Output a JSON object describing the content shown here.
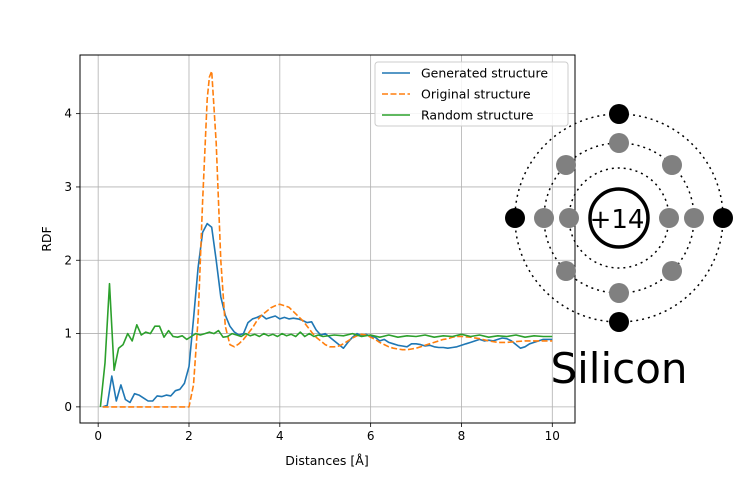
{
  "chart_data": {
    "type": "line",
    "title": "",
    "xlabel": "Distances [Å]",
    "ylabel": "RDF",
    "xlim": [
      -0.4,
      10.5
    ],
    "ylim": [
      -0.22,
      4.8
    ],
    "xticks": [
      0,
      2,
      4,
      6,
      8,
      10
    ],
    "yticks": [
      0,
      1,
      2,
      3,
      4
    ],
    "grid": true,
    "legend_position": "top-right",
    "series": [
      {
        "name": "Generated structure",
        "color": "#1f77b4",
        "style": "solid",
        "x": [
          0.1,
          0.2,
          0.3,
          0.4,
          0.5,
          0.6,
          0.7,
          0.8,
          0.9,
          1.0,
          1.1,
          1.2,
          1.3,
          1.4,
          1.5,
          1.6,
          1.7,
          1.8,
          1.9,
          2.0,
          2.1,
          2.2,
          2.3,
          2.4,
          2.5,
          2.6,
          2.7,
          2.8,
          2.9,
          3.0,
          3.1,
          3.2,
          3.3,
          3.4,
          3.5,
          3.6,
          3.7,
          3.8,
          3.9,
          4.0,
          4.1,
          4.2,
          4.3,
          4.4,
          4.5,
          4.6,
          4.7,
          4.8,
          4.9,
          5.0,
          5.1,
          5.2,
          5.3,
          5.4,
          5.5,
          5.6,
          5.7,
          5.8,
          5.9,
          6.0,
          6.1,
          6.2,
          6.3,
          6.4,
          6.5,
          6.6,
          6.7,
          6.8,
          6.9,
          7.0,
          7.1,
          7.2,
          7.3,
          7.4,
          7.5,
          7.6,
          7.7,
          7.8,
          7.9,
          8.0,
          8.1,
          8.2,
          8.3,
          8.4,
          8.5,
          8.6,
          8.7,
          8.8,
          8.9,
          9.0,
          9.1,
          9.2,
          9.3,
          9.4,
          9.5,
          9.6,
          9.7,
          9.8,
          9.9,
          10.0
        ],
        "y": [
          0.0,
          0.02,
          0.42,
          0.08,
          0.3,
          0.1,
          0.06,
          0.18,
          0.16,
          0.12,
          0.08,
          0.08,
          0.15,
          0.14,
          0.16,
          0.15,
          0.22,
          0.24,
          0.32,
          0.55,
          1.2,
          1.9,
          2.38,
          2.5,
          2.45,
          2.0,
          1.5,
          1.25,
          1.1,
          1.02,
          0.98,
          1.0,
          1.15,
          1.2,
          1.22,
          1.25,
          1.2,
          1.22,
          1.24,
          1.2,
          1.22,
          1.2,
          1.21,
          1.2,
          1.18,
          1.15,
          1.16,
          1.05,
          0.98,
          1.0,
          0.95,
          0.9,
          0.85,
          0.8,
          0.88,
          0.95,
          1.0,
          0.97,
          0.99,
          0.96,
          0.95,
          0.9,
          0.92,
          0.88,
          0.86,
          0.84,
          0.83,
          0.82,
          0.86,
          0.86,
          0.85,
          0.83,
          0.84,
          0.82,
          0.81,
          0.81,
          0.8,
          0.81,
          0.82,
          0.84,
          0.86,
          0.88,
          0.9,
          0.92,
          0.9,
          0.91,
          0.9,
          0.92,
          0.94,
          0.93,
          0.9,
          0.85,
          0.8,
          0.82,
          0.86,
          0.88,
          0.9,
          0.92,
          0.92,
          0.92
        ]
      },
      {
        "name": "Original structure",
        "color": "#ff7f0e",
        "style": "dashed",
        "x": [
          0.1,
          0.5,
          1.0,
          1.5,
          1.9,
          2.0,
          2.1,
          2.2,
          2.3,
          2.4,
          2.45,
          2.5,
          2.6,
          2.7,
          2.8,
          2.9,
          3.0,
          3.1,
          3.2,
          3.3,
          3.4,
          3.5,
          3.6,
          3.7,
          3.8,
          3.9,
          4.0,
          4.1,
          4.2,
          4.3,
          4.4,
          4.5,
          4.6,
          4.7,
          4.8,
          4.9,
          5.0,
          5.1,
          5.2,
          5.3,
          5.4,
          5.5,
          5.6,
          5.7,
          5.8,
          5.9,
          6.0,
          6.1,
          6.2,
          6.3,
          6.4,
          6.5,
          6.6,
          6.7,
          6.8,
          6.9,
          7.0,
          7.1,
          7.2,
          7.3,
          7.4,
          7.5,
          7.6,
          7.7,
          7.8,
          7.9,
          8.0,
          8.2,
          8.4,
          8.6,
          8.8,
          9.0,
          9.2,
          9.4,
          9.6,
          9.8,
          10.0
        ],
        "y": [
          0.0,
          0.0,
          0.0,
          0.0,
          0.0,
          0.0,
          0.3,
          1.2,
          2.8,
          4.2,
          4.5,
          4.58,
          3.6,
          2.0,
          1.1,
          0.85,
          0.82,
          0.86,
          0.92,
          1.0,
          1.08,
          1.18,
          1.25,
          1.3,
          1.35,
          1.38,
          1.4,
          1.38,
          1.36,
          1.3,
          1.24,
          1.18,
          1.1,
          1.02,
          0.95,
          0.9,
          0.85,
          0.82,
          0.82,
          0.83,
          0.86,
          0.9,
          0.94,
          0.97,
          0.99,
          0.98,
          0.95,
          0.92,
          0.88,
          0.85,
          0.82,
          0.8,
          0.79,
          0.78,
          0.78,
          0.79,
          0.8,
          0.82,
          0.84,
          0.86,
          0.88,
          0.9,
          0.92,
          0.93,
          0.95,
          0.96,
          0.96,
          0.95,
          0.93,
          0.9,
          0.88,
          0.88,
          0.89,
          0.9,
          0.9,
          0.9,
          0.9
        ]
      },
      {
        "name": "Random structure",
        "color": "#2ca02c",
        "style": "solid",
        "x": [
          0.05,
          0.15,
          0.25,
          0.35,
          0.45,
          0.55,
          0.65,
          0.75,
          0.85,
          0.95,
          1.05,
          1.15,
          1.25,
          1.35,
          1.45,
          1.55,
          1.65,
          1.75,
          1.85,
          1.95,
          2.05,
          2.15,
          2.25,
          2.35,
          2.45,
          2.55,
          2.65,
          2.75,
          2.85,
          2.95,
          3.05,
          3.15,
          3.25,
          3.35,
          3.45,
          3.55,
          3.65,
          3.75,
          3.85,
          3.95,
          4.05,
          4.15,
          4.25,
          4.35,
          4.45,
          4.55,
          4.65,
          4.75,
          4.85,
          4.95,
          5.2,
          5.4,
          5.6,
          5.8,
          6.0,
          6.2,
          6.4,
          6.6,
          6.8,
          7.0,
          7.2,
          7.4,
          7.6,
          7.8,
          8.0,
          8.2,
          8.4,
          8.6,
          8.8,
          9.0,
          9.2,
          9.4,
          9.6,
          9.8,
          10.0
        ],
        "y": [
          0.0,
          0.6,
          1.68,
          0.5,
          0.8,
          0.85,
          1.0,
          0.9,
          1.12,
          0.98,
          1.02,
          1.0,
          1.1,
          1.1,
          0.95,
          1.04,
          0.96,
          0.95,
          0.97,
          0.92,
          0.96,
          1.0,
          0.98,
          1.0,
          1.02,
          1.0,
          1.04,
          0.95,
          0.96,
          1.0,
          0.98,
          0.96,
          1.0,
          0.97,
          0.99,
          0.96,
          1.0,
          0.97,
          0.99,
          0.96,
          1.0,
          0.97,
          0.99,
          0.96,
          1.02,
          0.96,
          1.0,
          0.96,
          0.98,
          0.96,
          0.98,
          0.97,
          1.0,
          0.96,
          0.98,
          0.95,
          0.98,
          0.95,
          0.97,
          0.96,
          0.98,
          0.95,
          0.97,
          0.96,
          0.99,
          0.96,
          0.98,
          0.95,
          0.97,
          0.96,
          0.98,
          0.95,
          0.97,
          0.96,
          0.96
        ]
      }
    ]
  },
  "atom_diagram": {
    "nucleus_label": "+14",
    "element_name": "Silicon",
    "shells": [
      {
        "electrons": 2,
        "color": "#808080"
      },
      {
        "electrons": 8,
        "color": "#808080"
      },
      {
        "electrons": 4,
        "color": "#000000"
      }
    ]
  }
}
